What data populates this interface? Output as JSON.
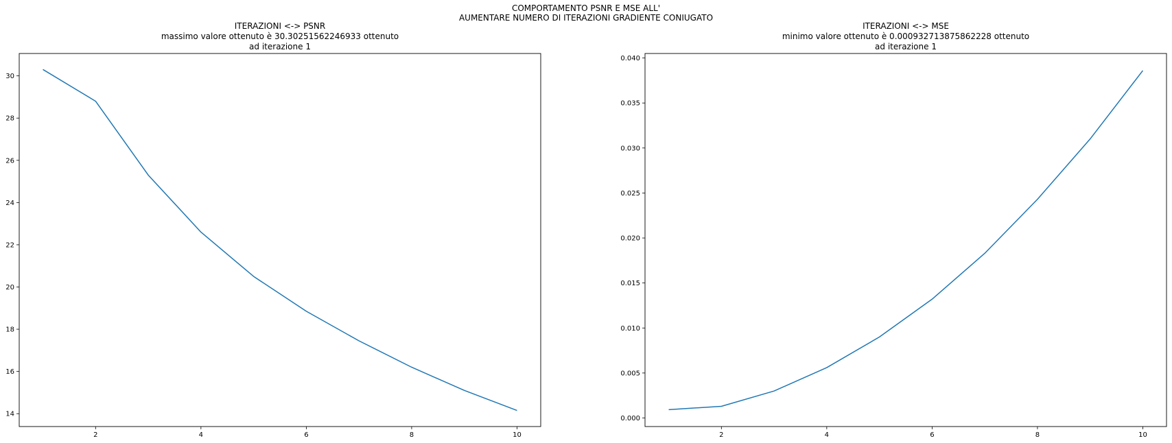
{
  "suptitle": {
    "line1": "COMPORTAMENTO PSNR E MSE ALL'",
    "line2": "AUMENTARE NUMERO DI ITERAZIONI GRADIENTE CONIUGATO"
  },
  "chart_data": [
    {
      "type": "line",
      "title": "ITERAZIONI <-> PSNR",
      "subtitle_line1": "massimo valore ottenuto è 30.30251562246933 ottenuto",
      "subtitle_line2": "ad iterazione 1",
      "xlabel": "",
      "ylabel": "",
      "x": [
        1,
        2,
        3,
        4,
        5,
        6,
        7,
        8,
        9,
        10
      ],
      "series": [
        {
          "values": [
            30.3025,
            28.8,
            25.3,
            22.6,
            20.5,
            18.85,
            17.45,
            16.2,
            15.1,
            14.15
          ],
          "color": "#1f77b4"
        }
      ],
      "xticks": [
        2,
        4,
        6,
        8,
        10
      ],
      "yticks": [
        14,
        16,
        18,
        20,
        22,
        24,
        26,
        28,
        30
      ],
      "xlim": [
        0.55,
        10.45
      ],
      "ylim": [
        13.39,
        31.06
      ],
      "grid": false
    },
    {
      "type": "line",
      "title": "ITERAZIONI <-> MSE",
      "subtitle_line1": "minimo valore ottenuto è 0.000932713875862228 ottenuto",
      "subtitle_line2": "ad iterazione 1",
      "xlabel": "",
      "ylabel": "",
      "x": [
        1,
        2,
        3,
        4,
        5,
        6,
        7,
        8,
        9,
        10
      ],
      "series": [
        {
          "values": [
            0.00093,
            0.0013,
            0.003,
            0.0056,
            0.009,
            0.0132,
            0.0183,
            0.0243,
            0.031,
            0.0386
          ],
          "color": "#1f77b4"
        }
      ],
      "xticks": [
        2,
        4,
        6,
        8,
        10
      ],
      "yticks": [
        0.0,
        0.005,
        0.01,
        0.015,
        0.02,
        0.025,
        0.03,
        0.035,
        0.04
      ],
      "ytick_labels": [
        "0.000",
        "0.005",
        "0.010",
        "0.015",
        "0.020",
        "0.025",
        "0.030",
        "0.035",
        "0.040"
      ],
      "xlim": [
        0.55,
        10.45
      ],
      "ylim": [
        -0.00095,
        0.0405
      ],
      "grid": false
    }
  ]
}
